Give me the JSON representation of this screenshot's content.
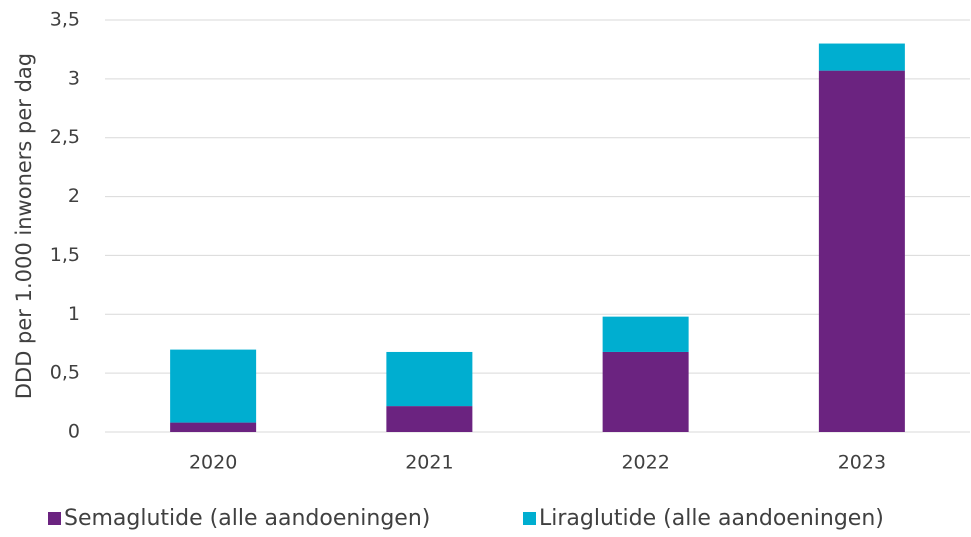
{
  "chart_data": {
    "type": "stacked_bar",
    "y_label": "DDD per 1.000 inwoners per dag",
    "categories": [
      "2020",
      "2021",
      "2022",
      "2023"
    ],
    "series": [
      {
        "name": "Semaglutide (alle aandoeningen)",
        "color": "#6b2380",
        "values": [
          0.08,
          0.22,
          0.68,
          3.07
        ]
      },
      {
        "name": "Liraglutide (alle aandoeningen)",
        "color": "#00aed0",
        "values": [
          0.62,
          0.46,
          0.3,
          0.23
        ]
      }
    ],
    "ylim": [
      0,
      3.5
    ],
    "yticks": [
      0,
      {
        "value": 0.5,
        "label": "0,5"
      },
      1,
      {
        "value": 1.5,
        "label": "1,5"
      },
      2,
      {
        "value": 2.5,
        "label": "2,5"
      },
      3,
      {
        "value": 3.5,
        "label": "3,5"
      }
    ],
    "grid": true,
    "legend": "bottom"
  }
}
